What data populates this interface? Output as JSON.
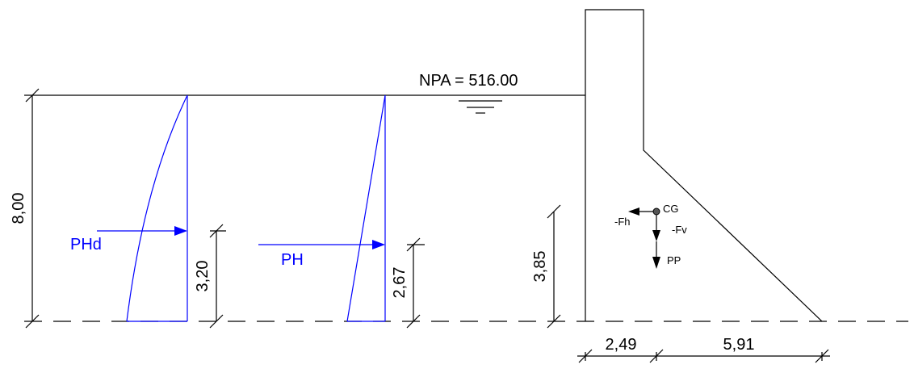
{
  "water_level": {
    "label": "NPA = 516.00"
  },
  "dimensions": {
    "height_total": "8,00",
    "phd_arm": "3,20",
    "ph_arm": "2,67",
    "cg_height": "3,85",
    "base_left": "2,49",
    "base_right": "5,91"
  },
  "forces": {
    "phd_label": "PHd",
    "ph_label": "PH",
    "cg_label": "CG",
    "fh_label": "-Fh",
    "fv_label": "-Fv",
    "pp_label": "PP"
  },
  "colors": {
    "lines": "#000000",
    "pressure": "#0000ff"
  }
}
